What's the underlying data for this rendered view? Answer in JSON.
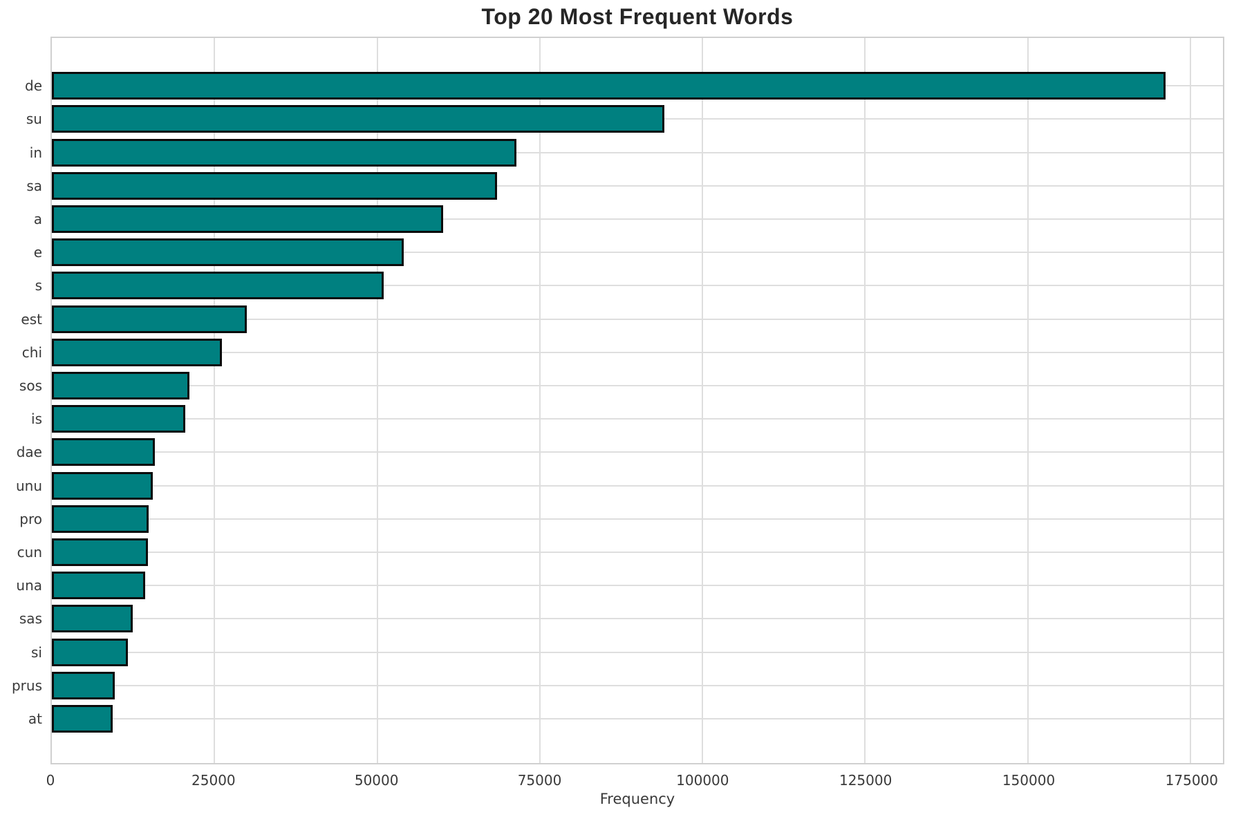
{
  "title": "Top 20 Most Frequent Words",
  "chart_data": {
    "type": "bar",
    "orientation": "horizontal",
    "title": "Top 20 Most Frequent Words",
    "xlabel": "Frequency",
    "ylabel": "",
    "categories": [
      "de",
      "su",
      "in",
      "sa",
      "a",
      "e",
      "s",
      "est",
      "chi",
      "sos",
      "is",
      "dae",
      "unu",
      "pro",
      "cun",
      "una",
      "sas",
      "si",
      "prus",
      "at"
    ],
    "values": [
      171200,
      94100,
      71400,
      68400,
      60100,
      54100,
      51000,
      30000,
      26100,
      21100,
      20500,
      15800,
      15500,
      14900,
      14800,
      14300,
      12400,
      11700,
      9700,
      9400
    ],
    "xlim": [
      0,
      180000
    ],
    "xticks": [
      0,
      25000,
      50000,
      75000,
      100000,
      125000,
      150000,
      175000
    ],
    "grid": true,
    "legend": false,
    "bar_color": "#008080",
    "bar_edge_color": "#0b0b0b",
    "grid_color": "#dedede",
    "spine_color": "#d0d0d0",
    "text_color": "#3a3a3a",
    "title_color": "#262626"
  }
}
